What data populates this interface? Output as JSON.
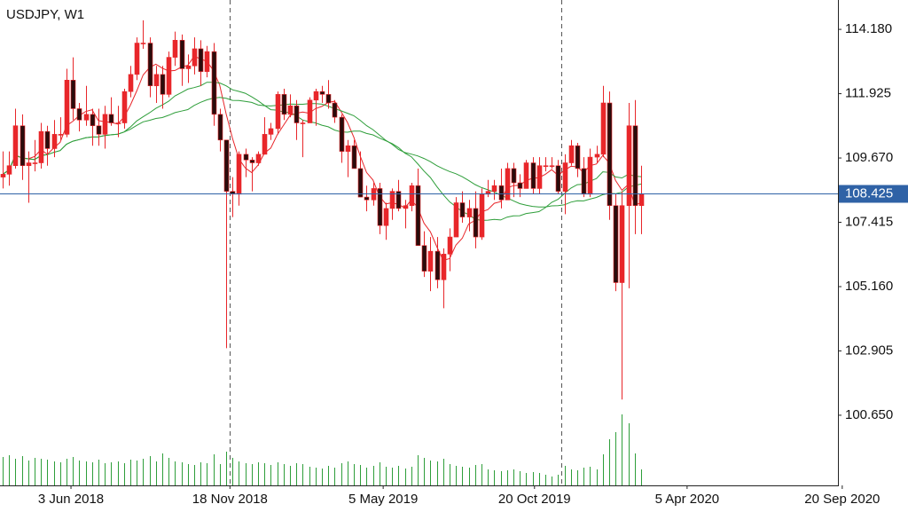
{
  "chart_data": {
    "type": "candlestick",
    "title": "USDJPY, W1",
    "xlim": [
      -0.417,
      141.8
    ],
    "ylim": [
      98.19,
      115.21
    ],
    "xticks": [
      {
        "value": 10.7,
        "label": "3 Jun 2018"
      },
      {
        "value": 35.6,
        "label": "18 Nov 2018"
      },
      {
        "value": 59.6,
        "label": "5 May 2019"
      },
      {
        "value": 83.3,
        "label": "20 Oct 2019"
      },
      {
        "value": 107.2,
        "label": "5 Apr 2020"
      },
      {
        "value": 131.5,
        "label": "20 Sep 2020"
      }
    ],
    "yticks": [
      {
        "value": 114.18,
        "label": "114.180"
      },
      {
        "value": 111.925,
        "label": "111.925"
      },
      {
        "value": 109.67,
        "label": "109.670"
      },
      {
        "value": 107.415,
        "label": "107.415"
      },
      {
        "value": 105.16,
        "label": "105.160"
      },
      {
        "value": 102.905,
        "label": "102.905"
      },
      {
        "value": 100.65,
        "label": "100.650"
      }
    ],
    "last_price": {
      "value": 108.425,
      "label": "108.425"
    },
    "separators": [
      35.6,
      87.5
    ],
    "up_color": "#e8262a",
    "down_color": "#2a0c0c",
    "wick_color": "#e8262a",
    "volume_color": "#2e9e3a",
    "last_price_color": "#2f62a6",
    "moving_averages": [
      {
        "period": 5,
        "color": "#e8262a"
      },
      {
        "period": 20,
        "color": "#2e9e3a"
      },
      {
        "period": 30,
        "color": "#2e9e3a"
      }
    ],
    "ohlc": [
      [
        109.0,
        109.9,
        108.6,
        109.1
      ],
      [
        109.1,
        109.9,
        108.7,
        109.4
      ],
      [
        109.4,
        111.4,
        109.3,
        110.8
      ],
      [
        110.8,
        111.2,
        108.9,
        109.4
      ],
      [
        109.4,
        109.9,
        108.1,
        109.5
      ],
      [
        109.5,
        110.3,
        109.2,
        109.5
      ],
      [
        109.5,
        110.9,
        109.3,
        110.6
      ],
      [
        110.6,
        110.8,
        109.4,
        110.0
      ],
      [
        110.0,
        111.0,
        109.7,
        110.5
      ],
      [
        110.5,
        111.1,
        110.3,
        110.5
      ],
      [
        110.5,
        112.8,
        110.4,
        112.4
      ],
      [
        112.4,
        113.2,
        111.0,
        111.4
      ],
      [
        111.4,
        111.6,
        110.6,
        111.0
      ],
      [
        111.0,
        112.2,
        110.8,
        111.2
      ],
      [
        111.2,
        111.4,
        110.1,
        110.8
      ],
      [
        110.8,
        111.4,
        110.1,
        110.5
      ],
      [
        110.5,
        111.5,
        110.0,
        111.2
      ],
      [
        111.2,
        111.8,
        110.8,
        110.9
      ],
      [
        110.9,
        111.5,
        110.4,
        110.9
      ],
      [
        110.9,
        112.1,
        110.7,
        112.0
      ],
      [
        112.0,
        112.9,
        111.8,
        112.6
      ],
      [
        112.6,
        113.9,
        112.4,
        113.7
      ],
      [
        113.7,
        114.5,
        113.5,
        113.7
      ],
      [
        113.7,
        113.9,
        111.8,
        112.2
      ],
      [
        112.2,
        112.9,
        111.6,
        112.6
      ],
      [
        112.6,
        112.9,
        111.4,
        111.9
      ],
      [
        111.9,
        113.4,
        111.8,
        113.2
      ],
      [
        113.2,
        114.1,
        112.9,
        113.8
      ],
      [
        113.8,
        114.0,
        112.2,
        112.8
      ],
      [
        112.8,
        113.3,
        112.3,
        112.9
      ],
      [
        112.9,
        113.9,
        112.6,
        113.5
      ],
      [
        113.5,
        113.8,
        112.2,
        112.7
      ],
      [
        112.7,
        113.6,
        112.5,
        113.4
      ],
      [
        113.4,
        113.7,
        110.8,
        111.2
      ],
      [
        111.2,
        111.4,
        109.9,
        110.3
      ],
      [
        110.3,
        110.3,
        103.0,
        108.5
      ],
      [
        108.5,
        109.0,
        107.6,
        108.4
      ],
      [
        108.4,
        109.9,
        108.0,
        109.8
      ],
      [
        109.8,
        110.0,
        109.0,
        109.6
      ],
      [
        109.6,
        109.7,
        108.5,
        109.5
      ],
      [
        109.5,
        109.9,
        109.4,
        109.8
      ],
      [
        109.8,
        111.1,
        109.8,
        110.5
      ],
      [
        110.5,
        110.9,
        110.3,
        110.7
      ],
      [
        110.7,
        112.0,
        110.5,
        111.9
      ],
      [
        111.9,
        112.1,
        111.0,
        111.2
      ],
      [
        111.2,
        111.9,
        111.1,
        111.5
      ],
      [
        111.5,
        111.7,
        110.3,
        110.9
      ],
      [
        110.9,
        111.0,
        109.7,
        110.9
      ],
      [
        110.9,
        111.8,
        110.9,
        111.7
      ],
      [
        111.7,
        112.1,
        110.8,
        112.0
      ],
      [
        112.0,
        112.2,
        111.6,
        111.9
      ],
      [
        111.9,
        112.4,
        111.4,
        111.6
      ],
      [
        111.6,
        111.7,
        110.9,
        111.1
      ],
      [
        111.1,
        111.2,
        109.5,
        109.9
      ],
      [
        109.9,
        110.3,
        109.0,
        110.1
      ],
      [
        110.1,
        110.3,
        109.3,
        109.3
      ],
      [
        109.3,
        109.9,
        108.3,
        108.3
      ],
      [
        108.3,
        108.7,
        107.8,
        108.2
      ],
      [
        108.2,
        108.8,
        108.0,
        108.6
      ],
      [
        108.6,
        108.8,
        107.0,
        107.3
      ],
      [
        107.3,
        108.1,
        106.8,
        107.9
      ],
      [
        107.9,
        108.6,
        107.5,
        108.5
      ],
      [
        108.5,
        108.9,
        107.8,
        107.9
      ],
      [
        107.9,
        108.2,
        107.2,
        108.0
      ],
      [
        108.0,
        108.8,
        107.8,
        108.7
      ],
      [
        108.7,
        109.3,
        106.6,
        106.6
      ],
      [
        106.6,
        107.1,
        105.5,
        105.7
      ],
      [
        105.7,
        106.9,
        105.0,
        106.4
      ],
      [
        106.4,
        106.9,
        105.1,
        105.4
      ],
      [
        105.4,
        106.5,
        104.4,
        106.3
      ],
      [
        106.3,
        107.2,
        105.7,
        106.9
      ],
      [
        106.9,
        108.3,
        106.9,
        108.1
      ],
      [
        108.1,
        108.5,
        107.4,
        107.6
      ],
      [
        107.6,
        108.2,
        107.1,
        107.9
      ],
      [
        107.9,
        108.5,
        106.5,
        106.9
      ],
      [
        106.9,
        108.6,
        106.8,
        108.4
      ],
      [
        108.4,
        108.9,
        108.3,
        108.5
      ],
      [
        108.5,
        108.9,
        108.2,
        108.7
      ],
      [
        108.7,
        109.3,
        107.9,
        108.2
      ],
      [
        108.2,
        109.5,
        108.2,
        109.3
      ],
      [
        109.3,
        109.5,
        108.3,
        108.8
      ],
      [
        108.8,
        109.1,
        108.3,
        108.6
      ],
      [
        108.6,
        109.6,
        108.6,
        109.5
      ],
      [
        109.5,
        109.7,
        108.4,
        108.6
      ],
      [
        108.6,
        109.7,
        108.4,
        109.4
      ],
      [
        109.4,
        109.7,
        109.2,
        109.4
      ],
      [
        109.4,
        109.7,
        109.3,
        109.4
      ],
      [
        109.4,
        109.6,
        108.4,
        108.5
      ],
      [
        108.5,
        109.8,
        107.7,
        109.5
      ],
      [
        109.5,
        110.3,
        109.4,
        110.1
      ],
      [
        110.1,
        110.2,
        109.0,
        109.3
      ],
      [
        109.3,
        109.7,
        108.3,
        108.4
      ],
      [
        108.4,
        110.0,
        108.3,
        109.7
      ],
      [
        109.7,
        110.1,
        109.5,
        109.8
      ],
      [
        109.8,
        112.2,
        109.7,
        111.6
      ],
      [
        111.6,
        112.0,
        107.5,
        108.0
      ],
      [
        108.0,
        108.4,
        105.0,
        105.3
      ],
      [
        105.3,
        108.5,
        101.2,
        108.0
      ],
      [
        108.0,
        111.6,
        105.1,
        110.8
      ],
      [
        110.8,
        111.7,
        107.0,
        108.0
      ],
      [
        108.0,
        109.4,
        107.0,
        108.4
      ]
    ],
    "volume": [
      32,
      34,
      30,
      33,
      28,
      31,
      30,
      29,
      27,
      26,
      30,
      32,
      28,
      27,
      26,
      29,
      25,
      26,
      27,
      25,
      29,
      28,
      30,
      33,
      27,
      36,
      31,
      27,
      26,
      24,
      23,
      26,
      25,
      35,
      24,
      38,
      31,
      27,
      25,
      24,
      26,
      25,
      23,
      26,
      24,
      22,
      25,
      24,
      21,
      20,
      19,
      22,
      20,
      25,
      27,
      24,
      23,
      20,
      22,
      26,
      21,
      20,
      22,
      19,
      21,
      34,
      31,
      28,
      27,
      30,
      24,
      22,
      21,
      20,
      23,
      24,
      18,
      17,
      16,
      17,
      18,
      16,
      14,
      15,
      14,
      12,
      10,
      12,
      22,
      18,
      17,
      20,
      21,
      18,
      35,
      52,
      60,
      80,
      70,
      36,
      18
    ]
  }
}
